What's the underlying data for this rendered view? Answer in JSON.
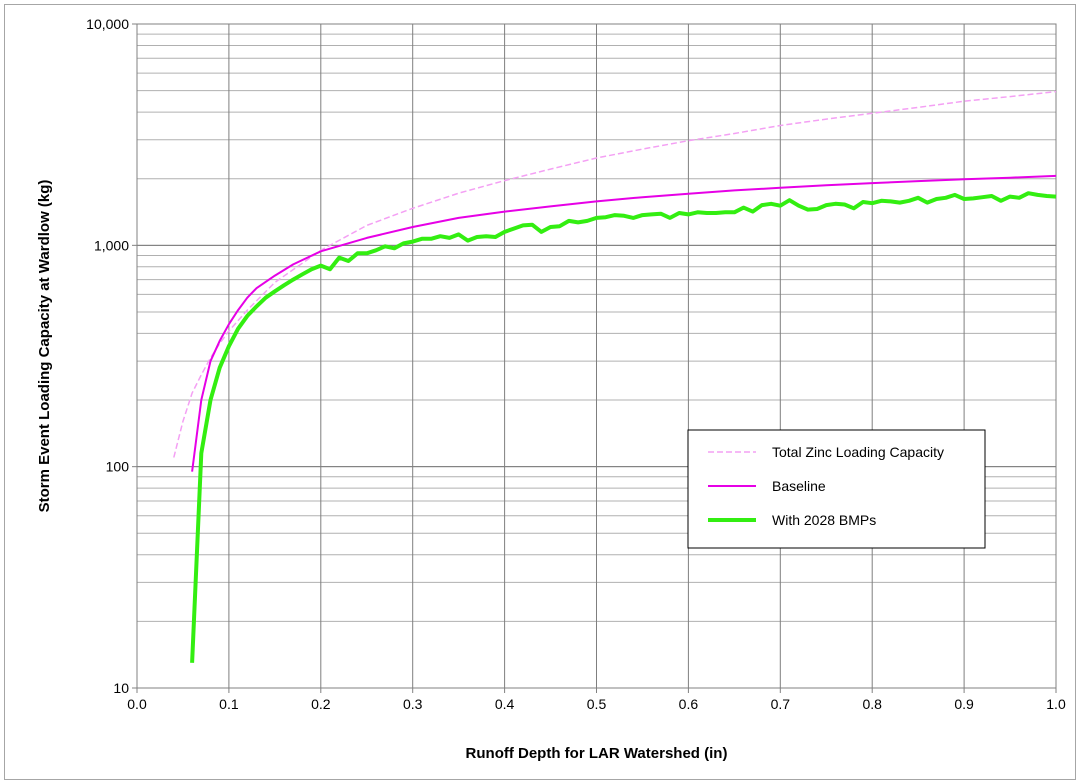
{
  "chart_data": {
    "type": "line",
    "xlabel": "Runoff Depth for LAR Watershed (in)",
    "ylabel": "Storm Event Loading Capacity at Wardlow (kg)",
    "xlim": [
      0.0,
      1.0
    ],
    "ylim": [
      10,
      10000
    ],
    "yscale": "log",
    "grid": true,
    "legend_position": "right-middle",
    "x_ticks": [
      "0.0",
      "0.1",
      "0.2",
      "0.3",
      "0.4",
      "0.5",
      "0.6",
      "0.7",
      "0.8",
      "0.9",
      "1.0"
    ],
    "y_ticks": [
      "10",
      "100",
      "1,000",
      "10,000"
    ],
    "series": [
      {
        "name": "Total Zinc Loading Capacity",
        "color": "#f4a0f4",
        "style": "dashed",
        "x": [
          0.04,
          0.05,
          0.06,
          0.07,
          0.08,
          0.09,
          0.1,
          0.12,
          0.15,
          0.2,
          0.25,
          0.3,
          0.35,
          0.4,
          0.45,
          0.5,
          0.55,
          0.6,
          0.65,
          0.7,
          0.75,
          0.8,
          0.85,
          0.9,
          0.95,
          1.0
        ],
        "y": [
          110,
          160,
          215,
          260,
          310,
          360,
          410,
          510,
          680,
          950,
          1230,
          1470,
          1720,
          1960,
          2210,
          2480,
          2720,
          2970,
          3200,
          3480,
          3720,
          3950,
          4200,
          4480,
          4700,
          4950
        ]
      },
      {
        "name": "Baseline",
        "color": "#e600e6",
        "style": "solid",
        "x": [
          0.06,
          0.07,
          0.08,
          0.09,
          0.1,
          0.11,
          0.12,
          0.13,
          0.15,
          0.17,
          0.2,
          0.25,
          0.3,
          0.35,
          0.4,
          0.45,
          0.5,
          0.55,
          0.6,
          0.65,
          0.7,
          0.75,
          0.8,
          0.85,
          0.9,
          0.95,
          1.0
        ],
        "y": [
          95,
          200,
          300,
          370,
          440,
          510,
          580,
          640,
          730,
          820,
          940,
          1080,
          1210,
          1330,
          1420,
          1500,
          1580,
          1650,
          1710,
          1770,
          1820,
          1870,
          1910,
          1950,
          1990,
          2020,
          2060
        ]
      },
      {
        "name": "With 2028 BMPs",
        "color": "#33ee11",
        "style": "solid-thick",
        "x": [
          0.06,
          0.07,
          0.08,
          0.09,
          0.1,
          0.11,
          0.12,
          0.13,
          0.14,
          0.15,
          0.16,
          0.17,
          0.18,
          0.19,
          0.2,
          0.21,
          0.22,
          0.23,
          0.24,
          0.25,
          0.26,
          0.27,
          0.28,
          0.29,
          0.3,
          0.31,
          0.32,
          0.33,
          0.34,
          0.35,
          0.36,
          0.37,
          0.38,
          0.39,
          0.4,
          0.41,
          0.42,
          0.43,
          0.44,
          0.45,
          0.46,
          0.47,
          0.48,
          0.49,
          0.5,
          0.51,
          0.52,
          0.53,
          0.54,
          0.55,
          0.56,
          0.57,
          0.58,
          0.59,
          0.6,
          0.61,
          0.62,
          0.63,
          0.64,
          0.65,
          0.66,
          0.67,
          0.68,
          0.69,
          0.7,
          0.71,
          0.72,
          0.73,
          0.74,
          0.75,
          0.76,
          0.77,
          0.78,
          0.79,
          0.8,
          0.81,
          0.82,
          0.83,
          0.84,
          0.85,
          0.86,
          0.87,
          0.88,
          0.89,
          0.9,
          0.91,
          0.92,
          0.93,
          0.94,
          0.95,
          0.96,
          0.97,
          0.98,
          0.99,
          1.0
        ],
        "y": [
          13,
          115,
          200,
          280,
          350,
          420,
          480,
          530,
          580,
          620,
          660,
          700,
          740,
          780,
          810,
          780,
          880,
          850,
          920,
          920,
          950,
          990,
          970,
          1020,
          1040,
          1070,
          1070,
          1100,
          1080,
          1120,
          1050,
          1090,
          1100,
          1090,
          1150,
          1190,
          1230,
          1240,
          1150,
          1210,
          1220,
          1290,
          1270,
          1290,
          1330,
          1340,
          1370,
          1360,
          1330,
          1370,
          1380,
          1390,
          1330,
          1400,
          1380,
          1410,
          1400,
          1400,
          1410,
          1410,
          1480,
          1420,
          1520,
          1540,
          1510,
          1600,
          1510,
          1450,
          1460,
          1520,
          1540,
          1530,
          1470,
          1570,
          1550,
          1590,
          1580,
          1560,
          1590,
          1640,
          1560,
          1620,
          1640,
          1690,
          1620,
          1630,
          1650,
          1670,
          1590,
          1660,
          1640,
          1720,
          1690,
          1670,
          1660
        ]
      }
    ]
  }
}
